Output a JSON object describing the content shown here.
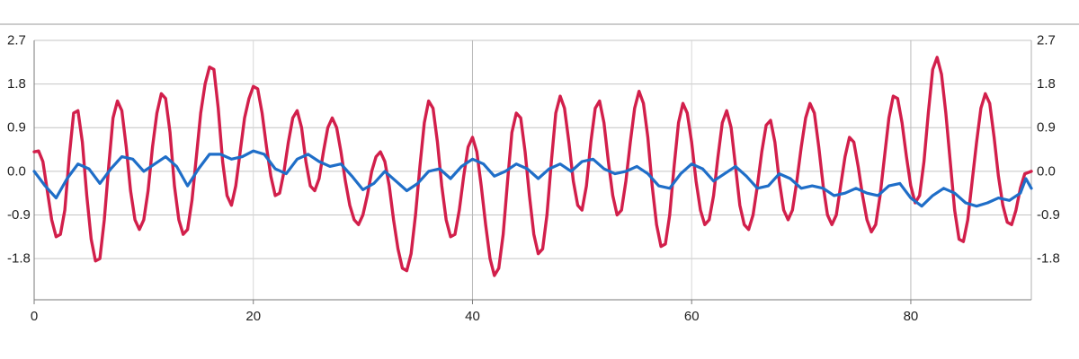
{
  "chart_data": {
    "type": "line",
    "title": "",
    "xlabel": "",
    "ylabel": "",
    "xlim": [
      0,
      91
    ],
    "ylim": [
      -2.65,
      2.7
    ],
    "x_ticks": [
      0,
      20,
      40,
      60,
      80
    ],
    "y_ticks": [
      2.7,
      1.8,
      0.9,
      0.0,
      -0.9,
      -1.8
    ],
    "y_tick_labels": [
      "2.7",
      "1.8",
      "0.9",
      "0.0",
      "-0.9",
      "-1.8"
    ],
    "right_axis_ticks": true,
    "grid": true,
    "legend": "none",
    "series": [
      {
        "color": "#d21f4b",
        "points": [
          [
            0.0,
            0.4
          ],
          [
            0.4,
            0.42
          ],
          [
            0.8,
            0.2
          ],
          [
            1.2,
            -0.4
          ],
          [
            1.6,
            -1.0
          ],
          [
            2.0,
            -1.35
          ],
          [
            2.4,
            -1.3
          ],
          [
            2.8,
            -0.8
          ],
          [
            3.2,
            0.3
          ],
          [
            3.6,
            1.2
          ],
          [
            4.0,
            1.25
          ],
          [
            4.4,
            0.6
          ],
          [
            4.8,
            -0.5
          ],
          [
            5.2,
            -1.4
          ],
          [
            5.6,
            -1.85
          ],
          [
            6.0,
            -1.8
          ],
          [
            6.4,
            -1.0
          ],
          [
            6.8,
            0.1
          ],
          [
            7.2,
            1.1
          ],
          [
            7.6,
            1.45
          ],
          [
            8.0,
            1.25
          ],
          [
            8.4,
            0.5
          ],
          [
            8.8,
            -0.4
          ],
          [
            9.2,
            -1.0
          ],
          [
            9.6,
            -1.2
          ],
          [
            10.0,
            -1.0
          ],
          [
            10.4,
            -0.4
          ],
          [
            10.8,
            0.5
          ],
          [
            11.2,
            1.2
          ],
          [
            11.6,
            1.6
          ],
          [
            12.0,
            1.5
          ],
          [
            12.4,
            0.8
          ],
          [
            12.8,
            -0.3
          ],
          [
            13.2,
            -1.0
          ],
          [
            13.6,
            -1.3
          ],
          [
            14.0,
            -1.2
          ],
          [
            14.4,
            -0.6
          ],
          [
            14.8,
            0.3
          ],
          [
            15.2,
            1.2
          ],
          [
            15.6,
            1.8
          ],
          [
            16.0,
            2.15
          ],
          [
            16.4,
            2.1
          ],
          [
            16.8,
            1.3
          ],
          [
            17.2,
            0.2
          ],
          [
            17.6,
            -0.5
          ],
          [
            18.0,
            -0.7
          ],
          [
            18.4,
            -0.3
          ],
          [
            18.8,
            0.4
          ],
          [
            19.2,
            1.1
          ],
          [
            19.6,
            1.5
          ],
          [
            20.0,
            1.75
          ],
          [
            20.4,
            1.7
          ],
          [
            20.8,
            1.2
          ],
          [
            21.2,
            0.5
          ],
          [
            21.6,
            -0.1
          ],
          [
            22.0,
            -0.5
          ],
          [
            22.4,
            -0.45
          ],
          [
            22.8,
            0.0
          ],
          [
            23.2,
            0.6
          ],
          [
            23.6,
            1.1
          ],
          [
            24.0,
            1.25
          ],
          [
            24.4,
            0.9
          ],
          [
            24.8,
            0.2
          ],
          [
            25.2,
            -0.3
          ],
          [
            25.6,
            -0.4
          ],
          [
            26.0,
            -0.15
          ],
          [
            26.4,
            0.4
          ],
          [
            26.8,
            0.9
          ],
          [
            27.2,
            1.1
          ],
          [
            27.6,
            0.9
          ],
          [
            28.0,
            0.4
          ],
          [
            28.4,
            -0.2
          ],
          [
            28.8,
            -0.7
          ],
          [
            29.2,
            -1.0
          ],
          [
            29.6,
            -1.1
          ],
          [
            30.0,
            -0.9
          ],
          [
            30.4,
            -0.5
          ],
          [
            30.8,
            0.0
          ],
          [
            31.2,
            0.3
          ],
          [
            31.6,
            0.4
          ],
          [
            32.0,
            0.2
          ],
          [
            32.4,
            -0.3
          ],
          [
            32.8,
            -1.0
          ],
          [
            33.2,
            -1.6
          ],
          [
            33.6,
            -2.0
          ],
          [
            34.0,
            -2.05
          ],
          [
            34.4,
            -1.7
          ],
          [
            34.8,
            -0.9
          ],
          [
            35.2,
            0.1
          ],
          [
            35.6,
            1.0
          ],
          [
            36.0,
            1.45
          ],
          [
            36.4,
            1.3
          ],
          [
            36.8,
            0.6
          ],
          [
            37.2,
            -0.3
          ],
          [
            37.6,
            -1.0
          ],
          [
            38.0,
            -1.35
          ],
          [
            38.4,
            -1.3
          ],
          [
            38.8,
            -0.8
          ],
          [
            39.2,
            -0.1
          ],
          [
            39.6,
            0.5
          ],
          [
            40.0,
            0.7
          ],
          [
            40.4,
            0.4
          ],
          [
            40.8,
            -0.3
          ],
          [
            41.2,
            -1.1
          ],
          [
            41.6,
            -1.8
          ],
          [
            42.0,
            -2.15
          ],
          [
            42.4,
            -2.0
          ],
          [
            42.8,
            -1.3
          ],
          [
            43.2,
            -0.2
          ],
          [
            43.6,
            0.8
          ],
          [
            44.0,
            1.2
          ],
          [
            44.4,
            1.1
          ],
          [
            44.8,
            0.4
          ],
          [
            45.2,
            -0.5
          ],
          [
            45.6,
            -1.3
          ],
          [
            46.0,
            -1.7
          ],
          [
            46.4,
            -1.6
          ],
          [
            46.8,
            -0.9
          ],
          [
            47.2,
            0.2
          ],
          [
            47.6,
            1.2
          ],
          [
            48.0,
            1.55
          ],
          [
            48.4,
            1.3
          ],
          [
            48.8,
            0.6
          ],
          [
            49.2,
            -0.2
          ],
          [
            49.6,
            -0.7
          ],
          [
            50.0,
            -0.8
          ],
          [
            50.4,
            -0.3
          ],
          [
            50.8,
            0.6
          ],
          [
            51.2,
            1.3
          ],
          [
            51.6,
            1.45
          ],
          [
            52.0,
            1.0
          ],
          [
            52.4,
            0.2
          ],
          [
            52.8,
            -0.5
          ],
          [
            53.2,
            -0.9
          ],
          [
            53.6,
            -0.8
          ],
          [
            54.0,
            -0.2
          ],
          [
            54.4,
            0.6
          ],
          [
            54.8,
            1.3
          ],
          [
            55.2,
            1.65
          ],
          [
            55.6,
            1.4
          ],
          [
            56.0,
            0.7
          ],
          [
            56.4,
            -0.3
          ],
          [
            56.8,
            -1.1
          ],
          [
            57.2,
            -1.55
          ],
          [
            57.6,
            -1.5
          ],
          [
            58.0,
            -0.9
          ],
          [
            58.4,
            0.1
          ],
          [
            58.8,
            1.0
          ],
          [
            59.2,
            1.4
          ],
          [
            59.6,
            1.2
          ],
          [
            60.0,
            0.6
          ],
          [
            60.4,
            -0.2
          ],
          [
            60.8,
            -0.8
          ],
          [
            61.2,
            -1.1
          ],
          [
            61.6,
            -1.0
          ],
          [
            62.0,
            -0.5
          ],
          [
            62.4,
            0.3
          ],
          [
            62.8,
            1.0
          ],
          [
            63.2,
            1.25
          ],
          [
            63.6,
            0.9
          ],
          [
            64.0,
            0.1
          ],
          [
            64.4,
            -0.7
          ],
          [
            64.8,
            -1.1
          ],
          [
            65.2,
            -1.2
          ],
          [
            65.6,
            -0.9
          ],
          [
            66.0,
            -0.3
          ],
          [
            66.4,
            0.4
          ],
          [
            66.8,
            0.95
          ],
          [
            67.2,
            1.05
          ],
          [
            67.6,
            0.6
          ],
          [
            68.0,
            -0.2
          ],
          [
            68.4,
            -0.8
          ],
          [
            68.8,
            -1.0
          ],
          [
            69.2,
            -0.8
          ],
          [
            69.6,
            -0.2
          ],
          [
            70.0,
            0.5
          ],
          [
            70.4,
            1.1
          ],
          [
            70.8,
            1.4
          ],
          [
            71.2,
            1.2
          ],
          [
            71.6,
            0.5
          ],
          [
            72.0,
            -0.3
          ],
          [
            72.4,
            -0.9
          ],
          [
            72.8,
            -1.1
          ],
          [
            73.2,
            -0.9
          ],
          [
            73.6,
            -0.3
          ],
          [
            74.0,
            0.3
          ],
          [
            74.4,
            0.7
          ],
          [
            74.8,
            0.6
          ],
          [
            75.2,
            0.1
          ],
          [
            75.6,
            -0.5
          ],
          [
            76.0,
            -1.0
          ],
          [
            76.4,
            -1.25
          ],
          [
            76.8,
            -1.1
          ],
          [
            77.2,
            -0.5
          ],
          [
            77.6,
            0.3
          ],
          [
            78.0,
            1.1
          ],
          [
            78.4,
            1.55
          ],
          [
            78.8,
            1.5
          ],
          [
            79.2,
            1.0
          ],
          [
            79.6,
            0.3
          ],
          [
            80.0,
            -0.3
          ],
          [
            80.4,
            -0.65
          ],
          [
            80.8,
            -0.5
          ],
          [
            81.2,
            0.2
          ],
          [
            81.6,
            1.2
          ],
          [
            82.0,
            2.1
          ],
          [
            82.4,
            2.35
          ],
          [
            82.8,
            2.0
          ],
          [
            83.2,
            1.2
          ],
          [
            83.6,
            0.2
          ],
          [
            84.0,
            -0.8
          ],
          [
            84.4,
            -1.4
          ],
          [
            84.8,
            -1.45
          ],
          [
            85.2,
            -1.0
          ],
          [
            85.6,
            -0.2
          ],
          [
            86.0,
            0.6
          ],
          [
            86.4,
            1.3
          ],
          [
            86.8,
            1.6
          ],
          [
            87.2,
            1.4
          ],
          [
            87.6,
            0.7
          ],
          [
            88.0,
            -0.1
          ],
          [
            88.4,
            -0.7
          ],
          [
            88.8,
            -1.05
          ],
          [
            89.2,
            -1.1
          ],
          [
            89.6,
            -0.8
          ],
          [
            90.0,
            -0.35
          ],
          [
            90.4,
            -0.05
          ],
          [
            91.0,
            0.0
          ]
        ]
      },
      {
        "color": "#1f6ec8",
        "points": [
          [
            0.0,
            0.0
          ],
          [
            1.0,
            -0.3
          ],
          [
            2.0,
            -0.55
          ],
          [
            3.0,
            -0.15
          ],
          [
            4.0,
            0.15
          ],
          [
            5.0,
            0.05
          ],
          [
            6.0,
            -0.25
          ],
          [
            7.0,
            0.05
          ],
          [
            8.0,
            0.3
          ],
          [
            9.0,
            0.25
          ],
          [
            10.0,
            0.0
          ],
          [
            11.0,
            0.15
          ],
          [
            12.0,
            0.3
          ],
          [
            13.0,
            0.1
          ],
          [
            14.0,
            -0.3
          ],
          [
            15.0,
            0.05
          ],
          [
            16.0,
            0.35
          ],
          [
            17.0,
            0.35
          ],
          [
            18.0,
            0.25
          ],
          [
            19.0,
            0.3
          ],
          [
            20.0,
            0.42
          ],
          [
            21.0,
            0.35
          ],
          [
            22.0,
            0.05
          ],
          [
            23.0,
            -0.05
          ],
          [
            24.0,
            0.25
          ],
          [
            25.0,
            0.35
          ],
          [
            26.0,
            0.2
          ],
          [
            27.0,
            0.1
          ],
          [
            28.0,
            0.15
          ],
          [
            29.0,
            -0.1
          ],
          [
            30.0,
            -0.38
          ],
          [
            31.0,
            -0.25
          ],
          [
            32.0,
            0.0
          ],
          [
            33.0,
            -0.2
          ],
          [
            34.0,
            -0.4
          ],
          [
            35.0,
            -0.25
          ],
          [
            36.0,
            0.0
          ],
          [
            37.0,
            0.05
          ],
          [
            38.0,
            -0.15
          ],
          [
            39.0,
            0.1
          ],
          [
            40.0,
            0.25
          ],
          [
            41.0,
            0.15
          ],
          [
            42.0,
            -0.1
          ],
          [
            43.0,
            0.0
          ],
          [
            44.0,
            0.15
          ],
          [
            45.0,
            0.05
          ],
          [
            46.0,
            -0.15
          ],
          [
            47.0,
            0.05
          ],
          [
            48.0,
            0.15
          ],
          [
            49.0,
            0.0
          ],
          [
            50.0,
            0.2
          ],
          [
            51.0,
            0.25
          ],
          [
            52.0,
            0.05
          ],
          [
            53.0,
            -0.05
          ],
          [
            54.0,
            0.0
          ],
          [
            55.0,
            0.1
          ],
          [
            56.0,
            -0.05
          ],
          [
            57.0,
            -0.3
          ],
          [
            58.0,
            -0.35
          ],
          [
            59.0,
            -0.05
          ],
          [
            60.0,
            0.15
          ],
          [
            61.0,
            0.05
          ],
          [
            62.0,
            -0.2
          ],
          [
            63.0,
            -0.05
          ],
          [
            64.0,
            0.1
          ],
          [
            65.0,
            -0.1
          ],
          [
            66.0,
            -0.35
          ],
          [
            67.0,
            -0.3
          ],
          [
            68.0,
            -0.05
          ],
          [
            69.0,
            -0.15
          ],
          [
            70.0,
            -0.35
          ],
          [
            71.0,
            -0.3
          ],
          [
            72.0,
            -0.35
          ],
          [
            73.0,
            -0.5
          ],
          [
            74.0,
            -0.45
          ],
          [
            75.0,
            -0.35
          ],
          [
            76.0,
            -0.45
          ],
          [
            77.0,
            -0.5
          ],
          [
            78.0,
            -0.3
          ],
          [
            79.0,
            -0.25
          ],
          [
            80.0,
            -0.55
          ],
          [
            81.0,
            -0.72
          ],
          [
            82.0,
            -0.5
          ],
          [
            83.0,
            -0.35
          ],
          [
            84.0,
            -0.45
          ],
          [
            85.0,
            -0.65
          ],
          [
            86.0,
            -0.72
          ],
          [
            87.0,
            -0.65
          ],
          [
            88.0,
            -0.55
          ],
          [
            89.0,
            -0.6
          ],
          [
            90.0,
            -0.45
          ],
          [
            90.5,
            -0.15
          ],
          [
            91.0,
            -0.35
          ]
        ]
      }
    ]
  }
}
